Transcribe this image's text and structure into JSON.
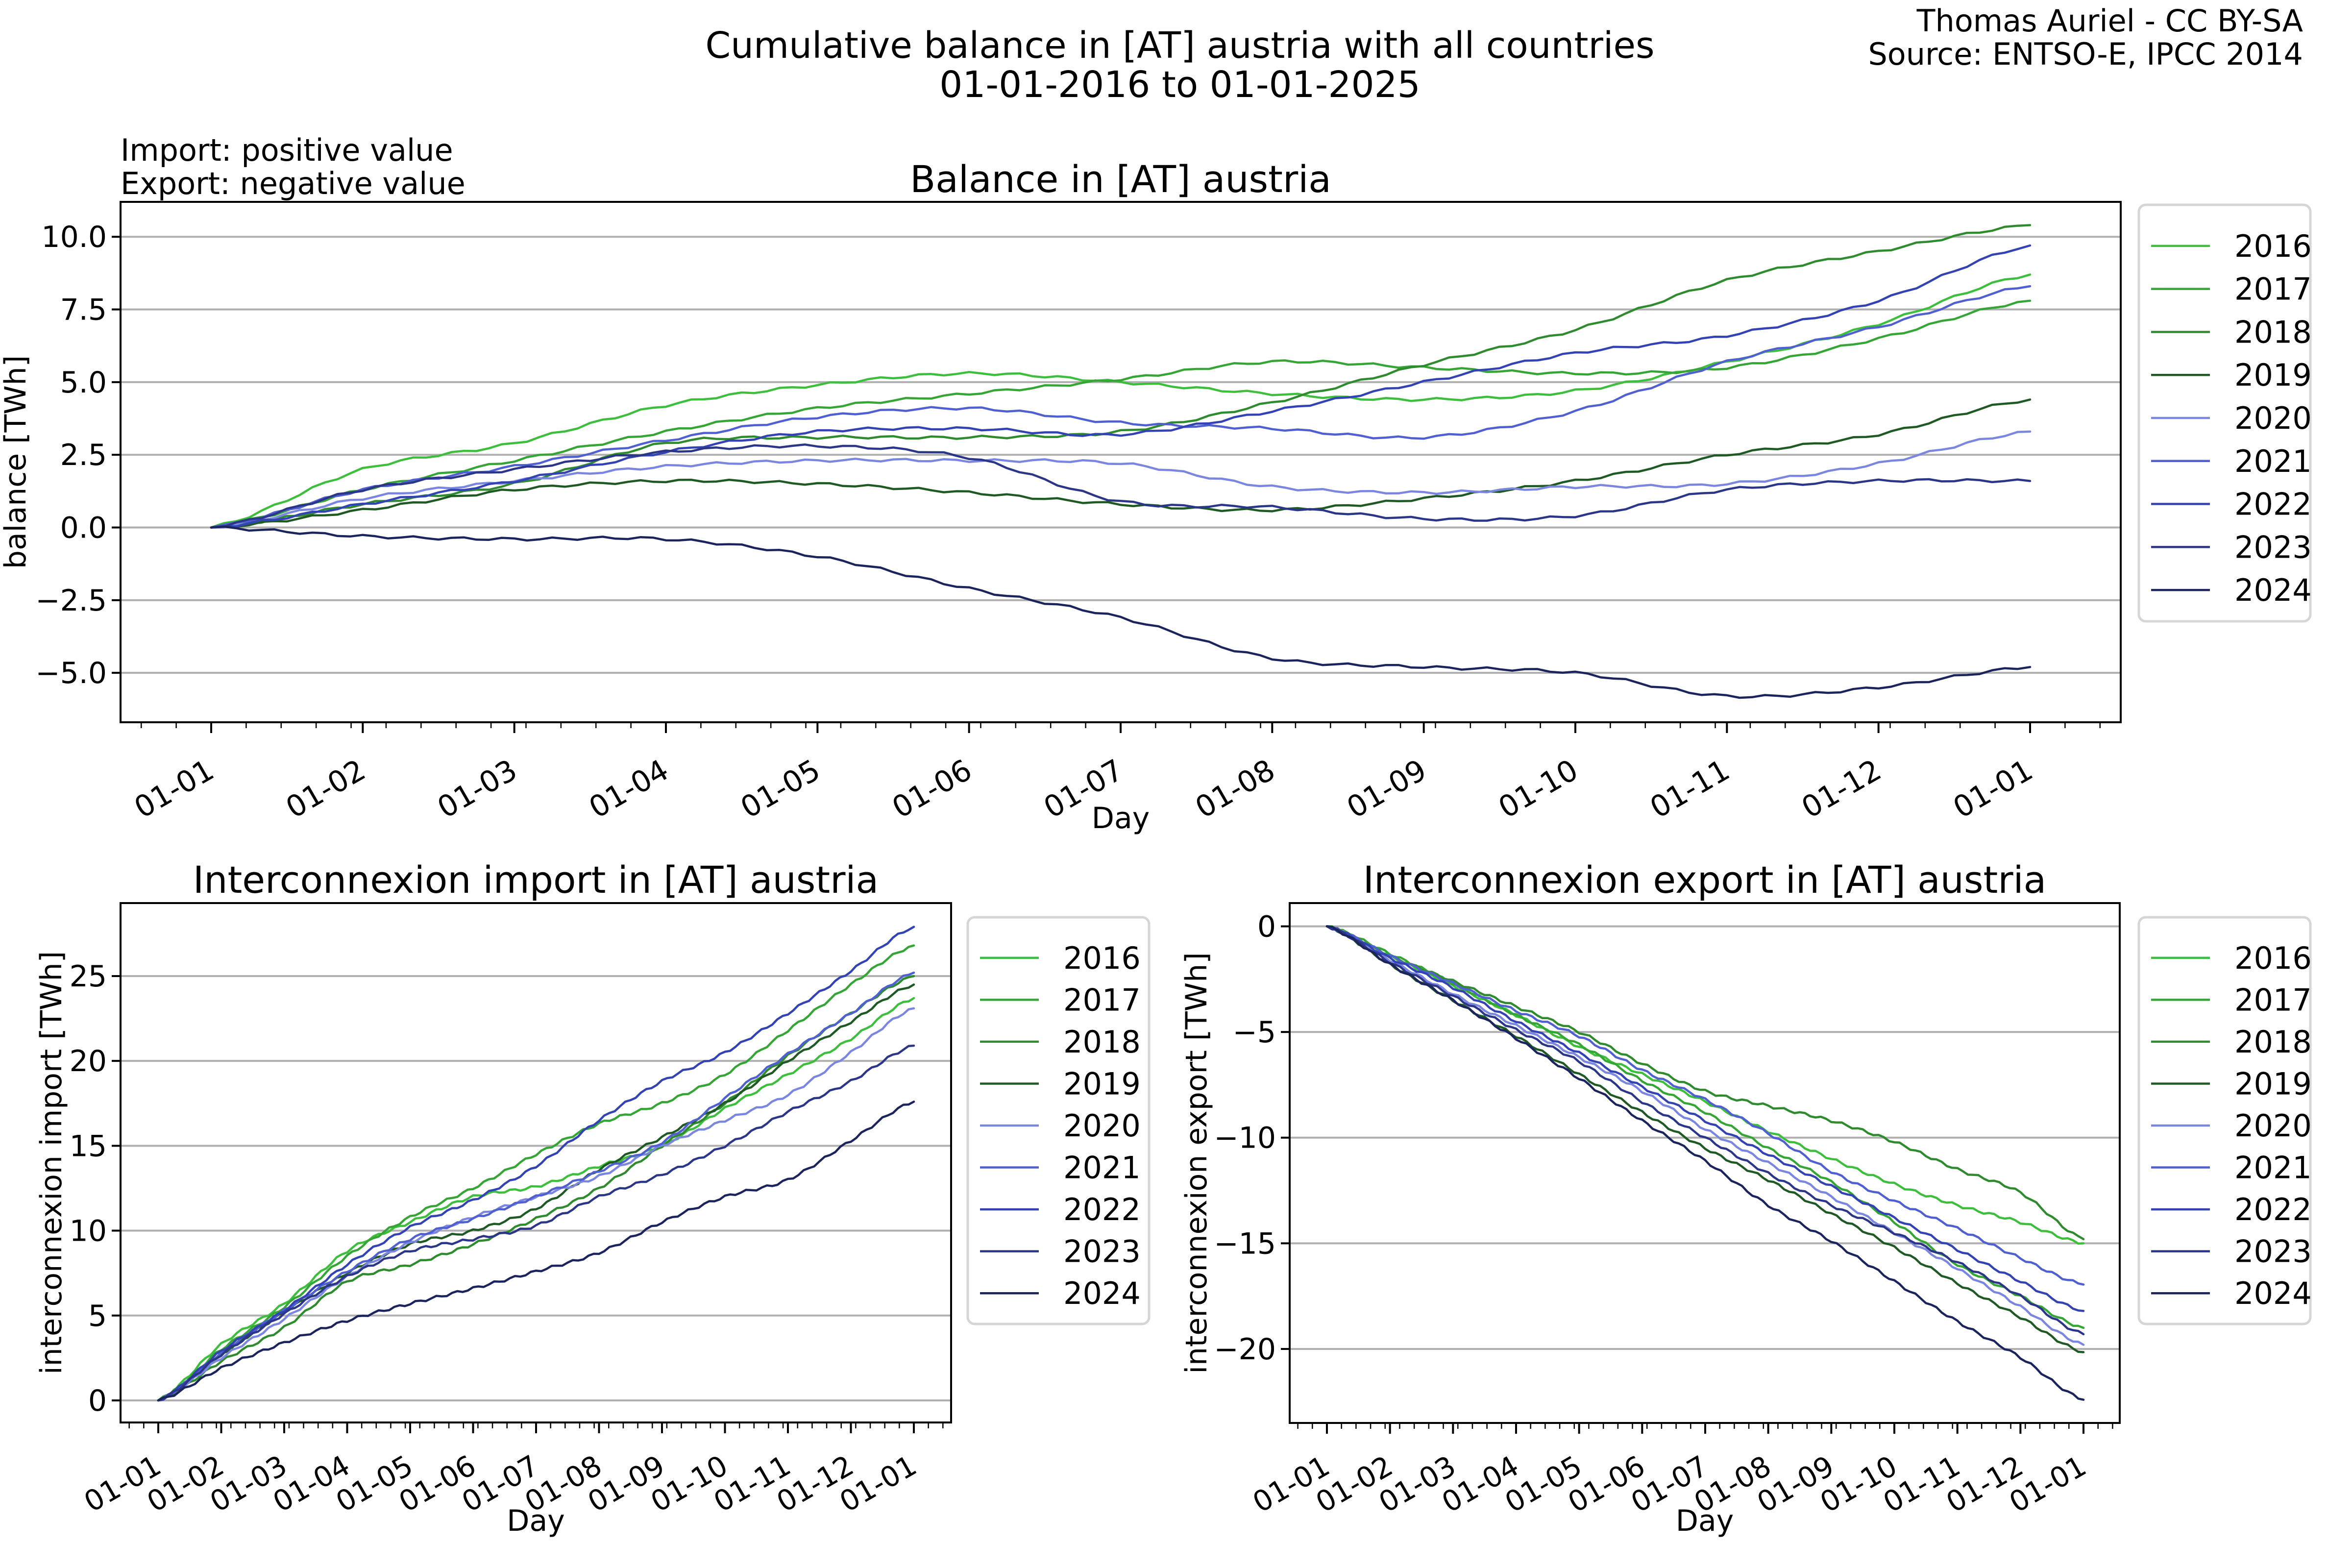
{
  "figure": {
    "suptitle_line1": "Cumulative balance in [AT] austria with all countries",
    "suptitle_line2": "01-01-2016 to 01-01-2025",
    "credit_line1": "Thomas Auriel - CC BY-SA",
    "credit_line2": "Source: ENTSO-E, IPCC 2014",
    "note_line1": "Import: positive value",
    "note_line2": "Export: negative value"
  },
  "chart_data": [
    {
      "id": "balance",
      "type": "line",
      "title": "Balance in [AT] austria",
      "xlabel": "Day",
      "ylabel": "balance [TWh]",
      "x": [
        "01-01",
        "01-02",
        "01-03",
        "01-04",
        "01-05",
        "01-06",
        "01-07",
        "01-08",
        "01-09",
        "01-10",
        "01-11",
        "01-12",
        "01-01"
      ],
      "xticks": [
        "01-01",
        "01-02",
        "01-03",
        "01-04",
        "01-05",
        "01-06",
        "01-07",
        "01-08",
        "01-09",
        "01-10",
        "01-11",
        "01-12",
        "01-01"
      ],
      "yticks": [
        "10.0",
        "7.5",
        "5.0",
        "2.5",
        "0.0",
        "−2.5",
        "−5.0"
      ],
      "ytick_values": [
        10,
        7.5,
        5,
        2.5,
        0,
        -2.5,
        -5
      ],
      "ylim": [
        -6.7,
        11.2
      ],
      "grid": "y",
      "legend": "outside-right-top",
      "series": [
        {
          "name": "2016",
          "color": "#3dbf3d",
          "values": [
            0,
            2.0,
            2.9,
            4.2,
            4.9,
            5.3,
            5.0,
            4.6,
            4.4,
            4.7,
            5.7,
            7.0,
            8.7
          ]
        },
        {
          "name": "2017",
          "color": "#35a535",
          "values": [
            0,
            1.3,
            2.3,
            3.3,
            4.1,
            4.6,
            5.1,
            5.7,
            5.5,
            5.3,
            5.5,
            6.5,
            7.8
          ]
        },
        {
          "name": "2018",
          "color": "#2e8b2e",
          "values": [
            0,
            0.8,
            1.5,
            2.9,
            3.1,
            3.1,
            3.3,
            4.3,
            5.6,
            6.8,
            8.5,
            9.5,
            10.4
          ]
        },
        {
          "name": "2019",
          "color": "#1f5a24",
          "values": [
            0,
            0.6,
            1.3,
            1.6,
            1.5,
            1.2,
            0.8,
            0.6,
            1.0,
            1.6,
            2.5,
            3.2,
            4.4
          ]
        },
        {
          "name": "2020",
          "color": "#7b86e0",
          "values": [
            0,
            1.0,
            1.6,
            2.1,
            2.3,
            2.3,
            2.2,
            1.4,
            1.2,
            1.4,
            1.5,
            2.2,
            3.3
          ]
        },
        {
          "name": "2021",
          "color": "#5060d0",
          "values": [
            0,
            1.3,
            2.1,
            3.0,
            3.8,
            4.1,
            3.6,
            3.4,
            3.1,
            4.0,
            5.7,
            6.9,
            8.3
          ]
        },
        {
          "name": "2022",
          "color": "#3443b4",
          "values": [
            0,
            0.8,
            1.6,
            2.6,
            3.3,
            3.4,
            3.2,
            4.0,
            5.0,
            6.0,
            6.6,
            7.8,
            9.7
          ]
        },
        {
          "name": "2023",
          "color": "#2b3689",
          "values": [
            0,
            1.3,
            2.0,
            2.6,
            2.8,
            2.4,
            0.9,
            0.7,
            0.3,
            0.4,
            1.3,
            1.6,
            1.6
          ]
        },
        {
          "name": "2024",
          "color": "#1c245e",
          "values": [
            0,
            -0.3,
            -0.4,
            -0.4,
            -1.0,
            -2.1,
            -3.1,
            -4.5,
            -4.8,
            -5.0,
            -5.8,
            -5.5,
            -4.8
          ]
        }
      ]
    },
    {
      "id": "import",
      "type": "line",
      "title": "Interconnexion import in [AT] austria",
      "xlabel": "Day",
      "ylabel": "interconnexion import [TWh]",
      "x": [
        "01-01",
        "01-02",
        "01-03",
        "01-04",
        "01-05",
        "01-06",
        "01-07",
        "01-08",
        "01-09",
        "01-10",
        "01-11",
        "01-12",
        "01-01"
      ],
      "xticks": [
        "01-01",
        "01-02",
        "01-03",
        "01-04",
        "01-05",
        "01-06",
        "01-07",
        "01-08",
        "01-09",
        "01-10",
        "01-11",
        "01-12",
        "01-01"
      ],
      "yticks": [
        "25",
        "20",
        "15",
        "10",
        "5",
        "0"
      ],
      "ytick_values": [
        25,
        20,
        15,
        10,
        5,
        0
      ],
      "ylim": [
        -1.3,
        29.3
      ],
      "grid": "y",
      "legend": "outside-right-top",
      "series": [
        {
          "name": "2016",
          "color": "#3dbf3d",
          "values": [
            0,
            3.3,
            5.7,
            8.8,
            10.5,
            12.0,
            12.6,
            13.8,
            15.0,
            17.2,
            19.2,
            21.3,
            23.7
          ]
        },
        {
          "name": "2017",
          "color": "#35a535",
          "values": [
            0,
            3.0,
            5.5,
            8.5,
            10.8,
            12.5,
            14.5,
            16.3,
            17.5,
            19.2,
            21.8,
            24.5,
            26.8
          ]
        },
        {
          "name": "2018",
          "color": "#2e8b2e",
          "values": [
            0,
            2.3,
            4.3,
            7.0,
            8.0,
            9.2,
            10.7,
            12.5,
            15.0,
            17.5,
            20.3,
            22.8,
            25.0
          ]
        },
        {
          "name": "2019",
          "color": "#1f5a24",
          "values": [
            0,
            2.7,
            5.2,
            7.5,
            9.2,
            10.0,
            11.3,
            13.6,
            15.5,
            17.5,
            20.0,
            22.3,
            24.5
          ]
        },
        {
          "name": "2020",
          "color": "#7b86e0",
          "values": [
            0,
            2.5,
            4.8,
            7.3,
            9.3,
            10.8,
            12.0,
            13.2,
            15.0,
            16.5,
            18.0,
            20.5,
            23.1
          ]
        },
        {
          "name": "2021",
          "color": "#5060d0",
          "values": [
            0,
            2.8,
            5.3,
            7.6,
            9.5,
            10.7,
            12.0,
            13.5,
            15.2,
            17.8,
            20.4,
            22.8,
            25.2
          ]
        },
        {
          "name": "2022",
          "color": "#3443b4",
          "values": [
            0,
            2.9,
            5.3,
            8.0,
            10.2,
            11.8,
            13.8,
            16.5,
            18.8,
            20.5,
            22.8,
            25.3,
            27.9
          ]
        },
        {
          "name": "2023",
          "color": "#2b3689",
          "values": [
            0,
            2.7,
            5.1,
            7.3,
            8.8,
            9.5,
            10.3,
            12.0,
            13.3,
            15.0,
            17.0,
            18.8,
            20.9
          ]
        },
        {
          "name": "2024",
          "color": "#1c245e",
          "values": [
            0,
            1.9,
            3.4,
            4.7,
            5.7,
            6.6,
            7.6,
            8.7,
            10.5,
            12.0,
            13.0,
            15.3,
            17.6
          ]
        }
      ]
    },
    {
      "id": "export",
      "type": "line",
      "title": "Interconnexion export in [AT] austria",
      "xlabel": "Day",
      "ylabel": "interconnexion export [TWh]",
      "x": [
        "01-01",
        "01-02",
        "01-03",
        "01-04",
        "01-05",
        "01-06",
        "01-07",
        "01-08",
        "01-09",
        "01-10",
        "01-11",
        "01-12",
        "01-01"
      ],
      "xticks": [
        "01-01",
        "01-02",
        "01-03",
        "01-04",
        "01-05",
        "01-06",
        "01-07",
        "01-08",
        "01-09",
        "01-10",
        "01-11",
        "01-12",
        "01-01"
      ],
      "yticks": [
        "0",
        "−5",
        "−10",
        "−15",
        "−20"
      ],
      "ytick_values": [
        0,
        -5,
        -10,
        -15,
        -20
      ],
      "ylim": [
        -23.5,
        1.1
      ],
      "grid": "y",
      "legend": "outside-right-top",
      "series": [
        {
          "name": "2016",
          "color": "#3dbf3d",
          "values": [
            0,
            -1.4,
            -2.8,
            -4.2,
            -5.7,
            -7.0,
            -8.3,
            -9.7,
            -11.0,
            -12.2,
            -13.2,
            -14.0,
            -15.0
          ]
        },
        {
          "name": "2017",
          "color": "#35a535",
          "values": [
            0,
            -1.3,
            -2.7,
            -4.2,
            -5.6,
            -7.3,
            -8.8,
            -10.5,
            -12.1,
            -14.0,
            -16.0,
            -17.5,
            -19.0
          ]
        },
        {
          "name": "2018",
          "color": "#2e8b2e",
          "values": [
            0,
            -1.4,
            -2.6,
            -3.8,
            -5.0,
            -6.5,
            -7.8,
            -8.5,
            -9.2,
            -10.2,
            -11.5,
            -12.6,
            -14.8
          ]
        },
        {
          "name": "2019",
          "color": "#1f5a24",
          "values": [
            0,
            -1.8,
            -3.5,
            -5.2,
            -7.0,
            -8.8,
            -10.5,
            -12.0,
            -13.6,
            -15.2,
            -16.9,
            -18.5,
            -20.15
          ]
        },
        {
          "name": "2020",
          "color": "#7b86e0",
          "values": [
            0,
            -1.6,
            -3.2,
            -4.7,
            -6.2,
            -7.8,
            -9.6,
            -11.2,
            -12.8,
            -14.5,
            -16.2,
            -18.0,
            -19.8
          ]
        },
        {
          "name": "2021",
          "color": "#5060d0",
          "values": [
            0,
            -1.4,
            -2.7,
            -4.0,
            -5.2,
            -6.8,
            -8.2,
            -9.8,
            -11.6,
            -13.0,
            -14.3,
            -15.7,
            -16.95
          ]
        },
        {
          "name": "2022",
          "color": "#3443b4",
          "values": [
            0,
            -1.5,
            -2.9,
            -4.5,
            -6.0,
            -7.6,
            -9.2,
            -10.8,
            -12.3,
            -13.8,
            -15.3,
            -16.8,
            -18.2
          ]
        },
        {
          "name": "2023",
          "color": "#2b3689",
          "values": [
            0,
            -1.7,
            -3.3,
            -4.9,
            -6.4,
            -8.3,
            -10.0,
            -11.7,
            -13.2,
            -14.5,
            -15.9,
            -17.5,
            -19.3
          ]
        },
        {
          "name": "2024",
          "color": "#1c245e",
          "values": [
            0,
            -1.8,
            -3.5,
            -5.3,
            -7.2,
            -9.2,
            -11.1,
            -13.2,
            -14.9,
            -16.8,
            -18.7,
            -20.4,
            -22.4
          ]
        }
      ]
    }
  ]
}
